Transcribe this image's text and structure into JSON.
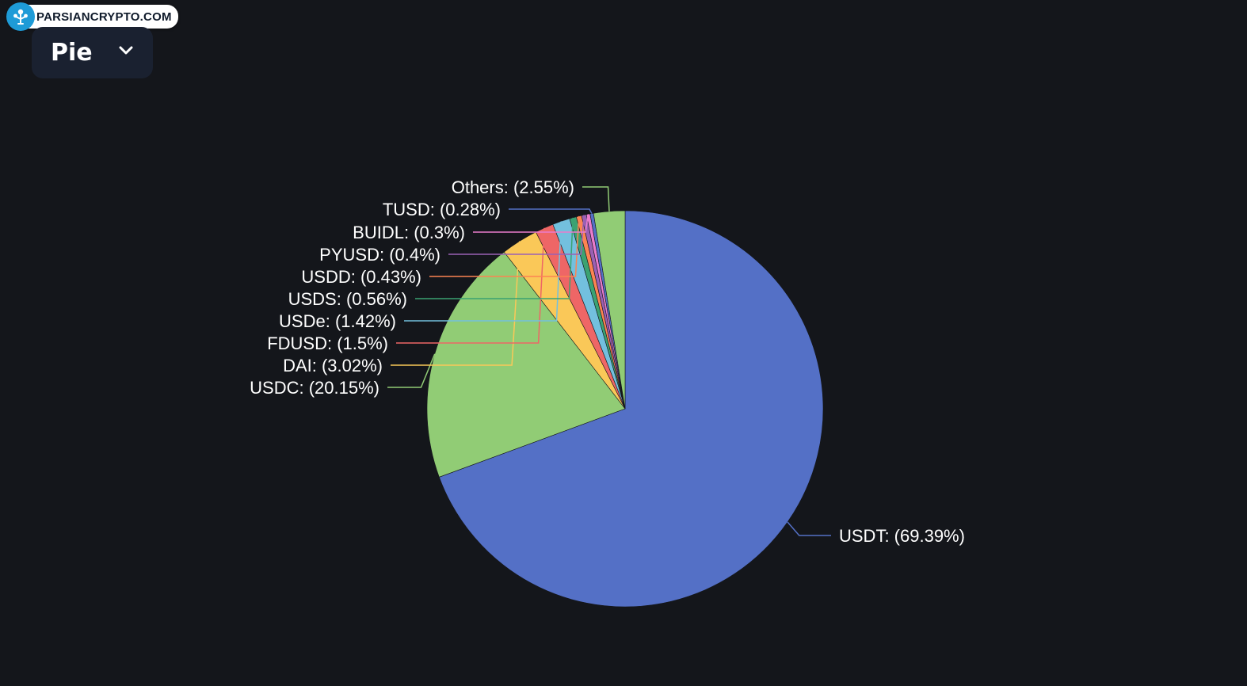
{
  "watermark": {
    "text": "PARSIANCRYPTO.COM"
  },
  "chart_type_select": {
    "selected": "Pie",
    "icon": "chevron-down-icon"
  },
  "chart_data": {
    "type": "pie",
    "start": "12 o'clock",
    "direction": "clockwise",
    "slices": [
      {
        "name": "USDT",
        "label": "USDT: (69.39%)",
        "value": 69.39,
        "color": "#5470c6"
      },
      {
        "name": "USDC",
        "label": "USDC: (20.15%)",
        "value": 20.15,
        "color": "#91cc75"
      },
      {
        "name": "DAI",
        "label": "DAI: (3.02%)",
        "value": 3.02,
        "color": "#fac858"
      },
      {
        "name": "FDUSD",
        "label": "FDUSD: (1.5%)",
        "value": 1.5,
        "color": "#ee6666"
      },
      {
        "name": "USDe",
        "label": "USDe: (1.42%)",
        "value": 1.42,
        "color": "#73c0de"
      },
      {
        "name": "USDS",
        "label": "USDS: (0.56%)",
        "value": 0.56,
        "color": "#3ba272"
      },
      {
        "name": "USDD",
        "label": "USDD: (0.43%)",
        "value": 0.43,
        "color": "#fc8452"
      },
      {
        "name": "PYUSD",
        "label": "PYUSD: (0.4%)",
        "value": 0.4,
        "color": "#9a60b4"
      },
      {
        "name": "BUIDL",
        "label": "BUIDL: (0.3%)",
        "value": 0.3,
        "color": "#ea7ccc"
      },
      {
        "name": "TUSD",
        "label": "TUSD: (0.28%)",
        "value": 0.28,
        "color": "#5470c6"
      },
      {
        "name": "Others",
        "label": "Others: (2.55%)",
        "value": 2.55,
        "color": "#91cc75"
      }
    ]
  }
}
